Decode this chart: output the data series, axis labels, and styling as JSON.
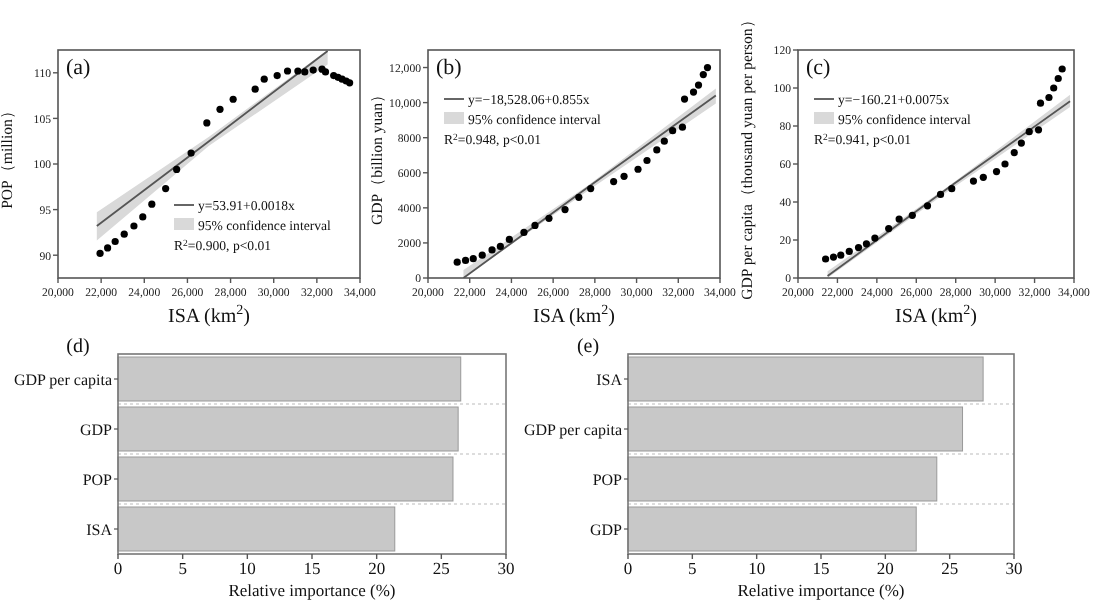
{
  "chart_data": [
    {
      "type": "scatter",
      "title": "(a)",
      "xlabel": "ISA (km$^{2}$)",
      "ylabel": "POP（million）",
      "xlim": [
        20000,
        34000
      ],
      "ylim": [
        87.5,
        112.5
      ],
      "xticks": [
        {
          "value": 20000,
          "label": "20,000"
        },
        {
          "value": 22000,
          "label": "22,000"
        },
        {
          "value": 24000,
          "label": "24,000"
        },
        {
          "value": 26000,
          "label": "26,000"
        },
        {
          "value": 28000,
          "label": "28,000"
        },
        {
          "value": 30000,
          "label": "30,000"
        },
        {
          "value": 32000,
          "label": "32,000"
        },
        {
          "value": 34000,
          "label": "34,000"
        }
      ],
      "yticks": [
        90,
        95,
        100,
        105,
        110
      ],
      "legend": "bottom right",
      "marker": "circle",
      "series": [
        {
          "type": "scatter",
          "color": "#000000",
          "x": [
            21950,
            22300,
            22650,
            23070,
            23520,
            23930,
            24350,
            24990,
            25500,
            26170,
            26900,
            27510,
            28120,
            29140,
            29560,
            30160,
            30640,
            31120,
            31440,
            31830,
            32240,
            32400,
            32780,
            32980,
            33170,
            33360,
            33520
          ],
          "values": [
            90.2,
            90.8,
            91.5,
            92.3,
            93.2,
            94.2,
            95.6,
            97.3,
            99.4,
            101.2,
            104.5,
            106.0,
            107.1,
            108.2,
            109.3,
            109.7,
            110.2,
            110.2,
            110.1,
            110.3,
            110.4,
            110.1,
            109.7,
            109.5,
            109.3,
            109.1,
            108.9
          ]
        },
        {
          "type": "line",
          "name": "y=53.91+0.0018x",
          "color": "#555555",
          "marker": "none",
          "x": [
            21800,
            27000,
            32500
          ],
          "values": [
            93.2,
            102.5,
            112.4
          ],
          "lower": [
            91.6,
            102.0,
            110.9
          ],
          "upper": [
            94.7,
            103.0,
            112.5
          ]
        }
      ],
      "annotations": [
        "95% confidence interval",
        "R$^{2}$=0.900, p<0.01"
      ]
    },
    {
      "type": "scatter",
      "title": "(b)",
      "xlabel": "ISA (km$^{2}$)",
      "ylabel": "GDP（billion yuan）",
      "xlim": [
        20000,
        34000
      ],
      "ylim": [
        0,
        13000
      ],
      "xticks": [
        {
          "value": 20000,
          "label": "20,000"
        },
        {
          "value": 22000,
          "label": "22,000"
        },
        {
          "value": 24000,
          "label": "24,000"
        },
        {
          "value": 26000,
          "label": "26,000"
        },
        {
          "value": 28000,
          "label": "28,000"
        },
        {
          "value": 30000,
          "label": "30,000"
        },
        {
          "value": 32000,
          "label": "32,000"
        },
        {
          "value": 34000,
          "label": "34,000"
        }
      ],
      "yticks": [
        0,
        2000,
        4000,
        6000,
        8000,
        {
          "value": 10000,
          "label": "10,000"
        },
        {
          "value": 12000,
          "label": "12,000"
        }
      ],
      "legend": "top left",
      "marker": "circle",
      "series": [
        {
          "type": "scatter",
          "color": "#000000",
          "x": [
            21400,
            21800,
            22170,
            22600,
            23070,
            23470,
            23900,
            24600,
            25130,
            25800,
            26570,
            27230,
            27800,
            28900,
            29400,
            30070,
            30500,
            30970,
            31330,
            31730,
            32200,
            32300,
            32730,
            32970,
            33200,
            33400
          ],
          "values": [
            900,
            1000,
            1100,
            1300,
            1600,
            1800,
            2200,
            2600,
            3000,
            3400,
            3900,
            4600,
            5100,
            5500,
            5800,
            6200,
            6700,
            7300,
            7800,
            8400,
            8600,
            10200,
            10600,
            11000,
            11600,
            12000
          ]
        },
        {
          "type": "line",
          "name": "y=−18,528.06+0.855x",
          "color": "#555555",
          "marker": "none",
          "x": [
            21700,
            27700,
            33800
          ],
          "values": [
            0,
            5200,
            10400
          ],
          "lower": [
            0,
            5000,
            9950
          ],
          "upper": [
            450,
            5300,
            10800
          ]
        }
      ],
      "annotations": [
        "95% confidence interval",
        "R$^{2}$=0.948, p<0.01"
      ]
    },
    {
      "type": "scatter",
      "title": "(c)",
      "xlabel": "ISA (km$^{2}$)",
      "ylabel": "GDP per capita（thousand yuan per person）",
      "xlim": [
        20000,
        34000
      ],
      "ylim": [
        0,
        120
      ],
      "xticks": [
        {
          "value": 20000,
          "label": "20,000"
        },
        {
          "value": 22000,
          "label": "22,000"
        },
        {
          "value": 24000,
          "label": "24,000"
        },
        {
          "value": 26000,
          "label": "26,000"
        },
        {
          "value": 28000,
          "label": "28,000"
        },
        {
          "value": 30000,
          "label": "30,000"
        },
        {
          "value": 32000,
          "label": "32,000"
        },
        {
          "value": 34000,
          "label": "34,000"
        }
      ],
      "yticks": [
        0,
        20,
        40,
        60,
        80,
        100,
        120
      ],
      "legend": "top left",
      "marker": "circle",
      "series": [
        {
          "type": "scatter",
          "color": "#000000",
          "x": [
            21400,
            21800,
            22170,
            22600,
            23070,
            23470,
            23900,
            24600,
            25130,
            25800,
            26570,
            27230,
            27800,
            28900,
            29400,
            30070,
            30500,
            30970,
            31330,
            31730,
            32200,
            32300,
            32730,
            32970,
            33200,
            33400
          ],
          "values": [
            10,
            11,
            12,
            14,
            16,
            18,
            21,
            26,
            31,
            33,
            38,
            44,
            47,
            51,
            53,
            56,
            60,
            66,
            71,
            77,
            78,
            92,
            95,
            100,
            105,
            110
          ]
        },
        {
          "type": "line",
          "name": "y=−160.21+0.0075x",
          "color": "#555555",
          "marker": "none",
          "x": [
            21500,
            27700,
            33800
          ],
          "values": [
            1,
            48,
            93
          ],
          "lower": [
            0,
            46.3,
            90.0
          ],
          "upper": [
            3.5,
            48.8,
            96.5
          ]
        }
      ],
      "annotations": [
        "95% confidence interval",
        "R$^{2}$=0.941, p<0.01"
      ]
    },
    {
      "type": "bar",
      "title": "(d)",
      "orientation": "horizontal",
      "xlabel": "Relative importance (%)",
      "categories": [
        "GDP per capita",
        "GDP",
        "POP",
        "ISA"
      ],
      "values": [
        26.5,
        26.3,
        25.9,
        21.4
      ],
      "color": "#c8c8c8",
      "xlim": [
        0,
        30
      ],
      "xticks": [
        0,
        5,
        10,
        15,
        20,
        25,
        30
      ],
      "grid": "y"
    },
    {
      "type": "bar",
      "title": "(e)",
      "orientation": "horizontal",
      "xlabel": "Relative importance (%)",
      "categories": [
        "ISA",
        "GDP per capita",
        "POP",
        "GDP"
      ],
      "values": [
        27.6,
        26.0,
        24.0,
        22.4
      ],
      "color": "#c8c8c8",
      "xlim": [
        0,
        30
      ],
      "xticks": [
        0,
        5,
        10,
        15,
        20,
        25,
        30
      ],
      "grid": "y"
    }
  ]
}
